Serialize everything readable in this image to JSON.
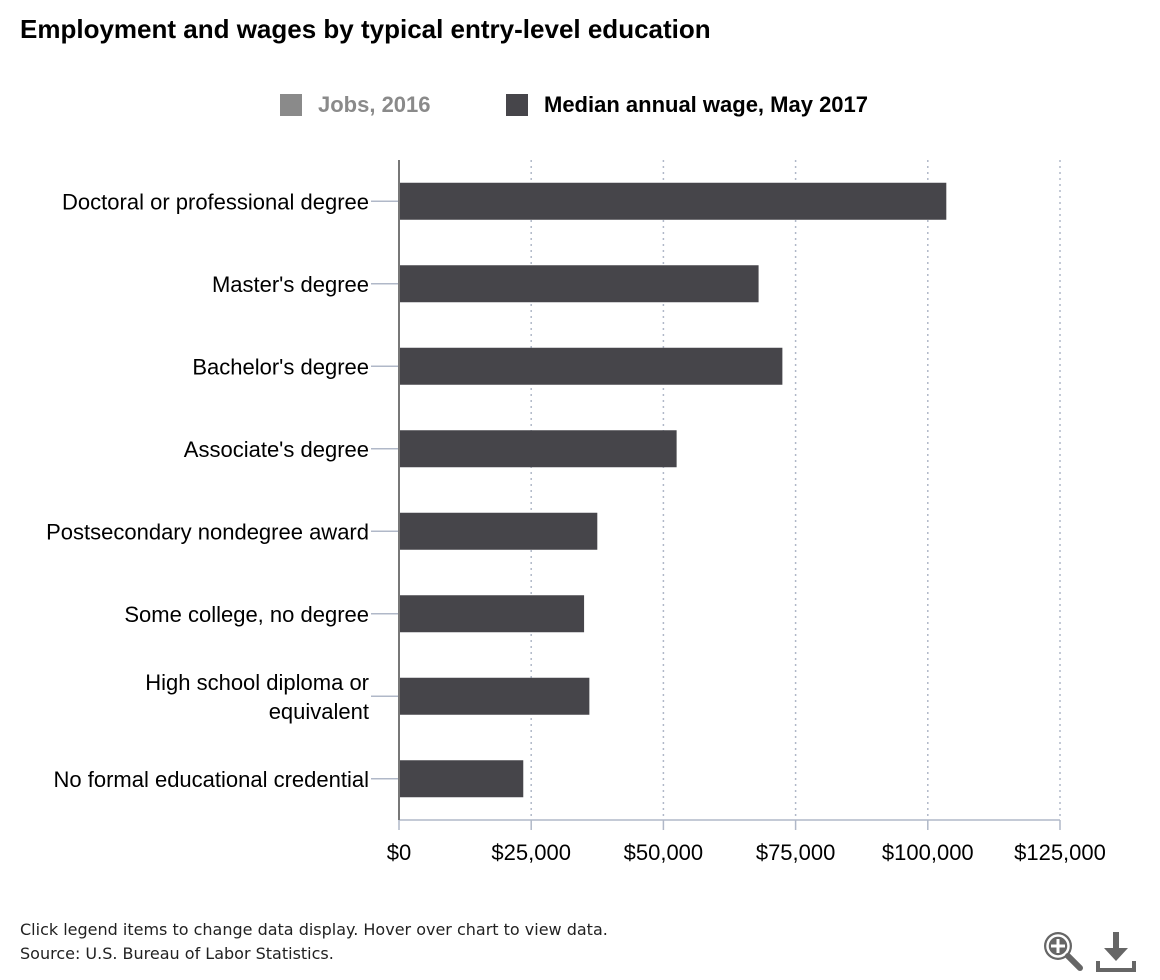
{
  "title": "Employment and wages by typical entry-level education",
  "legend": {
    "jobs_label": "Jobs, 2016",
    "wage_label": "Median annual wage, May 2017"
  },
  "colors": {
    "jobs": "#8a8a8a",
    "wage": "#46454a",
    "grid": "#b0b8c8",
    "axis": "#777777"
  },
  "footer": {
    "note": "Click legend items to change data display. Hover over chart to view data.",
    "source": "Source: U.S. Bureau of Labor Statistics."
  },
  "toolbar": {
    "zoom_icon": "zoom-in-icon",
    "download_icon": "download-icon"
  },
  "chart_data": {
    "type": "bar",
    "orientation": "horizontal",
    "categories": [
      "Doctoral or professional degree",
      "Master's degree",
      "Bachelor's degree",
      "Associate's degree",
      "Postsecondary nondegree award",
      "Some college, no degree",
      "High school diploma or equivalent",
      "No formal educational credential"
    ],
    "category_label_lines": [
      [
        "Doctoral or professional degree"
      ],
      [
        "Master's degree"
      ],
      [
        "Bachelor's degree"
      ],
      [
        "Associate's degree"
      ],
      [
        "Postsecondary nondegree award"
      ],
      [
        "Some college, no degree"
      ],
      [
        "High school diploma or",
        "equivalent"
      ],
      [
        "No formal educational credential"
      ]
    ],
    "series": [
      {
        "name": "Median annual wage, May 2017",
        "values": [
          103500,
          68000,
          72500,
          52500,
          37500,
          35000,
          36000,
          23500
        ]
      }
    ],
    "hidden_series": [
      "Jobs, 2016"
    ],
    "xlim": [
      0,
      125000
    ],
    "ticks": [
      0,
      25000,
      50000,
      75000,
      100000,
      125000
    ],
    "tick_labels": [
      "$0",
      "$25,000",
      "$50,000",
      "$75,000",
      "$100,000",
      "$125,000"
    ],
    "grid": true,
    "legend_position": "top-center"
  }
}
